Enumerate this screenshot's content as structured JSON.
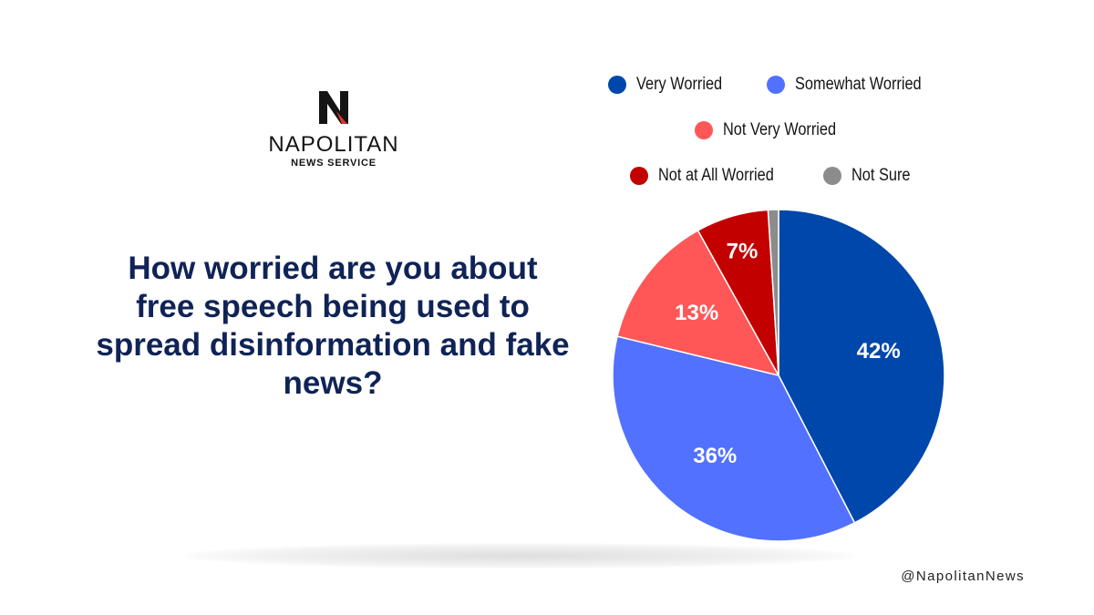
{
  "logo": {
    "name": "NAPOLITAN",
    "subtitle": "NEWS SERVICE"
  },
  "question": "How worried are you about free speech being used to spread disinformation and fake news?",
  "handle": "@NapolitanNews",
  "colors": {
    "very_worried": "#0047ab",
    "somewhat_worried": "#5271ff",
    "not_very_worried": "#ff5757",
    "not_at_all_worried": "#c20000",
    "not_sure": "#8c8c8c",
    "title": "#0f2356"
  },
  "chart_data": {
    "type": "pie",
    "title": "",
    "legend_position": "top",
    "slices": [
      {
        "label": "Very Worried",
        "value": 42,
        "color": "#0047ab",
        "data_label": "42%"
      },
      {
        "label": "Somewhat Worried",
        "value": 36,
        "color": "#5271ff",
        "data_label": "36%"
      },
      {
        "label": "Not Very Worried",
        "value": 13,
        "color": "#ff5757",
        "data_label": "13%"
      },
      {
        "label": "Not at All Worried",
        "value": 7,
        "color": "#c20000",
        "data_label": "7%"
      },
      {
        "label": "Not Sure",
        "value": 1,
        "color": "#8c8c8c",
        "data_label": ""
      }
    ]
  }
}
